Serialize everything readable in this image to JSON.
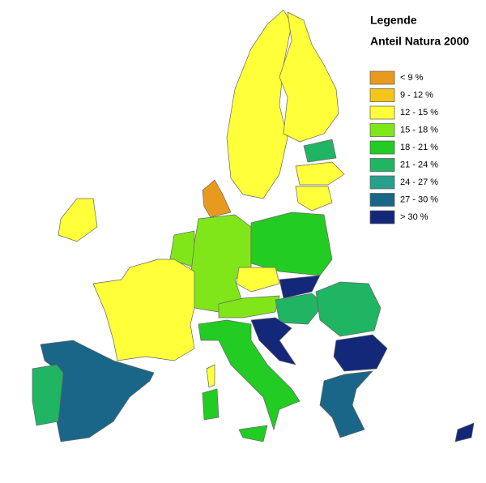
{
  "legend": {
    "title": "Legende",
    "subtitle": "Anteil Natura 2000",
    "items": [
      {
        "label": "< 9 %",
        "color": "#e89a1e"
      },
      {
        "label": "9 - 12 %",
        "color": "#f5c518"
      },
      {
        "label": "12 - 15 %",
        "color": "#ffff3a"
      },
      {
        "label": "15 - 18 %",
        "color": "#80e61a"
      },
      {
        "label": "18 - 21 %",
        "color": "#22cc22"
      },
      {
        "label": "21 - 24 %",
        "color": "#1fb562"
      },
      {
        "label": "24 - 27 %",
        "color": "#28a08c"
      },
      {
        "label": "27 - 30 %",
        "color": "#1a6688"
      },
      {
        "label": "> 30 %",
        "color": "#14287a"
      }
    ]
  }
}
